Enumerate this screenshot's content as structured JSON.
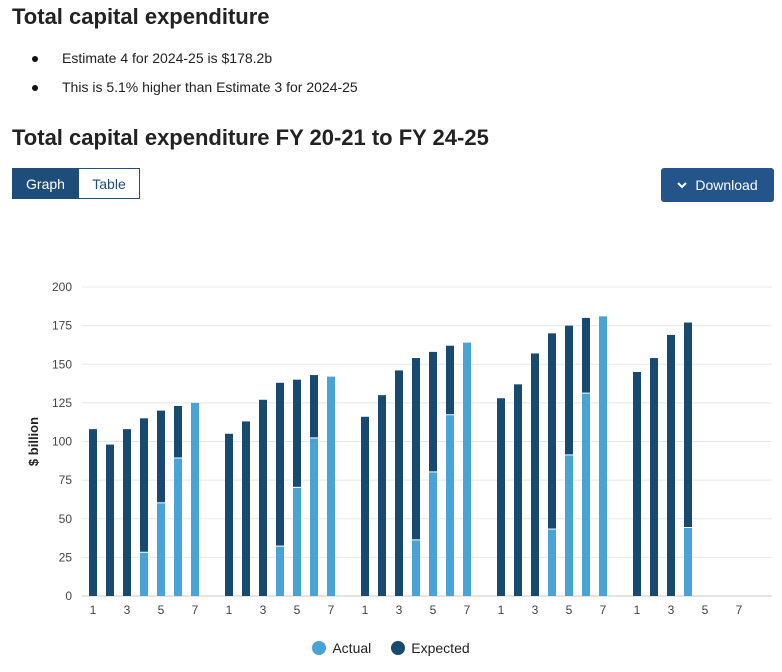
{
  "header": {
    "title": "Total capital expenditure",
    "bullets": [
      "Estimate 4 for 2024-25 is $178.2b",
      "This is 5.1% higher than Estimate 3 for 2024-25"
    ],
    "chart_title": "Total capital expenditure FY 20-21 to FY 24-25"
  },
  "tabs": {
    "graph_label": "Graph",
    "table_label": "Table"
  },
  "download": {
    "label": "Download",
    "icon": "chevron-down-icon"
  },
  "colors": {
    "actual": "#4aa3d6",
    "expected": "#174a6e",
    "accent": "#1e4d7a"
  },
  "chart_data": {
    "type": "bar",
    "stacked": true,
    "ylabel": "$ billion",
    "ylim": [
      0,
      200
    ],
    "yticks": [
      0,
      25,
      50,
      75,
      100,
      125,
      150,
      175,
      200
    ],
    "grid": true,
    "legend_position": "bottom-center",
    "x_tick_labels_per_group": [
      "1",
      "",
      "3",
      "",
      "5",
      "",
      "7"
    ],
    "groups": [
      {
        "name": "",
        "bars": [
          {
            "x": 1,
            "actual": 0,
            "expected": 108
          },
          {
            "x": 2,
            "actual": 0,
            "expected": 98
          },
          {
            "x": 3,
            "actual": 0,
            "expected": 108
          },
          {
            "x": 4,
            "actual": 28,
            "expected": 87
          },
          {
            "x": 5,
            "actual": 60,
            "expected": 60
          },
          {
            "x": 6,
            "actual": 89,
            "expected": 34
          },
          {
            "x": 7,
            "actual": 125,
            "expected": 0
          }
        ]
      },
      {
        "name": "",
        "bars": [
          {
            "x": 1,
            "actual": 0,
            "expected": 105
          },
          {
            "x": 2,
            "actual": 0,
            "expected": 113
          },
          {
            "x": 3,
            "actual": 0,
            "expected": 127
          },
          {
            "x": 4,
            "actual": 32,
            "expected": 106
          },
          {
            "x": 5,
            "actual": 70,
            "expected": 70
          },
          {
            "x": 6,
            "actual": 102,
            "expected": 41
          },
          {
            "x": 7,
            "actual": 142,
            "expected": 0
          }
        ]
      },
      {
        "name": "",
        "bars": [
          {
            "x": 1,
            "actual": 0,
            "expected": 116
          },
          {
            "x": 2,
            "actual": 0,
            "expected": 130
          },
          {
            "x": 3,
            "actual": 0,
            "expected": 146
          },
          {
            "x": 4,
            "actual": 36,
            "expected": 118
          },
          {
            "x": 5,
            "actual": 80,
            "expected": 78
          },
          {
            "x": 6,
            "actual": 117,
            "expected": 45
          },
          {
            "x": 7,
            "actual": 164,
            "expected": 0
          }
        ]
      },
      {
        "name": "",
        "bars": [
          {
            "x": 1,
            "actual": 0,
            "expected": 128
          },
          {
            "x": 2,
            "actual": 0,
            "expected": 137
          },
          {
            "x": 3,
            "actual": 0,
            "expected": 157
          },
          {
            "x": 4,
            "actual": 43,
            "expected": 127
          },
          {
            "x": 5,
            "actual": 91,
            "expected": 84
          },
          {
            "x": 6,
            "actual": 131,
            "expected": 49
          },
          {
            "x": 7,
            "actual": 181,
            "expected": 0
          }
        ]
      },
      {
        "name": "",
        "bars": [
          {
            "x": 1,
            "actual": 0,
            "expected": 145
          },
          {
            "x": 2,
            "actual": 0,
            "expected": 154
          },
          {
            "x": 3,
            "actual": 0,
            "expected": 169
          },
          {
            "x": 4,
            "actual": 44,
            "expected": 133
          }
        ]
      }
    ],
    "legend": {
      "actual_label": "Actual",
      "expected_label": "Expected"
    }
  }
}
